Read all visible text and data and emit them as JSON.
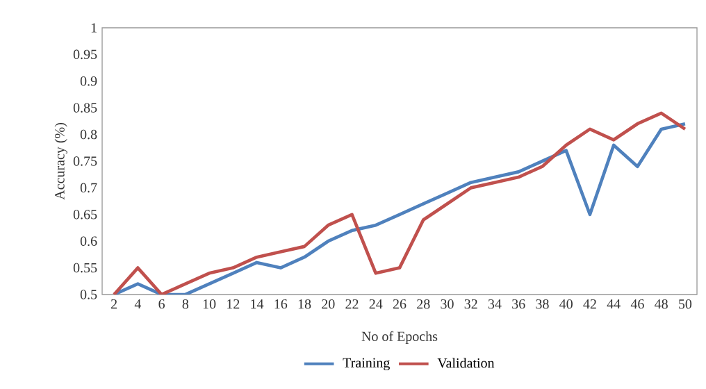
{
  "chart_data": {
    "type": "line",
    "xlabel": "No of Epochs",
    "ylabel": "Accuracy (%)",
    "categories": [
      "2",
      "4",
      "6",
      "8",
      "10",
      "12",
      "14",
      "16",
      "18",
      "20",
      "22",
      "24",
      "26",
      "28",
      "30",
      "32",
      "34",
      "36",
      "38",
      "40",
      "42",
      "44",
      "46",
      "48",
      "50"
    ],
    "series": [
      {
        "name": "Training",
        "color": "#4f81bd",
        "values": [
          0.5,
          0.52,
          0.5,
          0.5,
          0.52,
          0.54,
          0.56,
          0.55,
          0.57,
          0.6,
          0.62,
          0.63,
          0.65,
          0.67,
          0.69,
          0.71,
          0.72,
          0.73,
          0.75,
          0.77,
          0.65,
          0.78,
          0.74,
          0.81,
          0.82
        ]
      },
      {
        "name": "Validation",
        "color": "#c0504d",
        "values": [
          0.5,
          0.55,
          0.5,
          0.52,
          0.54,
          0.55,
          0.57,
          0.58,
          0.59,
          0.63,
          0.65,
          0.54,
          0.55,
          0.64,
          0.67,
          0.7,
          0.71,
          0.72,
          0.74,
          0.78,
          0.81,
          0.79,
          0.82,
          0.84,
          0.81
        ]
      }
    ],
    "ylim": [
      0.5,
      1
    ],
    "yticks": [
      0.5,
      0.55,
      0.6,
      0.65,
      0.7,
      0.75,
      0.8,
      0.85,
      0.9,
      0.95,
      1
    ],
    "legend": "bottom"
  }
}
